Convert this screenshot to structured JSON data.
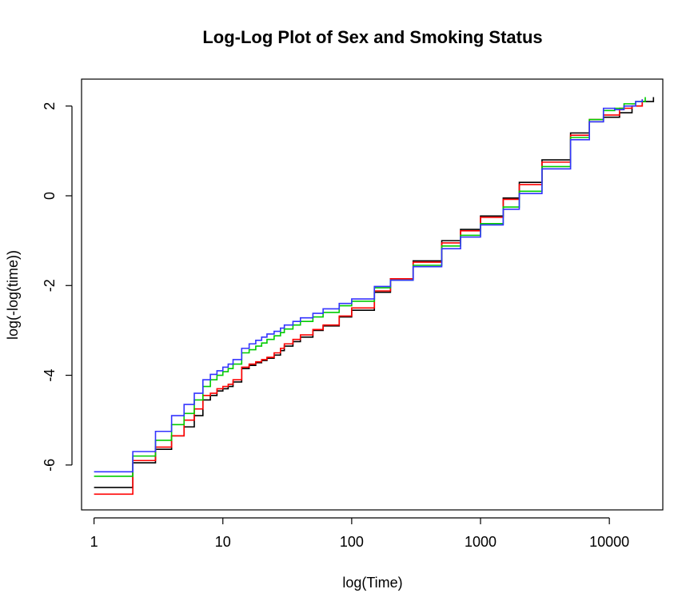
{
  "chart_data": {
    "type": "line",
    "title": "Log-Log Plot of Sex and Smoking Status",
    "xlabel": "log(Time)",
    "ylabel": "log(-log(time))",
    "x_scale": "log10",
    "xlim": [
      0.8,
      26000
    ],
    "ylim": [
      -7.0,
      2.6
    ],
    "x_ticks": [
      1,
      10,
      100,
      1000,
      10000
    ],
    "x_tick_labels": [
      "1",
      "10",
      "100",
      "1000",
      "10000"
    ],
    "y_ticks": [
      -6,
      -4,
      -2,
      0,
      2
    ],
    "y_tick_labels": [
      "-6",
      "-4",
      "-2",
      "0",
      "2"
    ],
    "grid": false,
    "legend": "none",
    "series": [
      {
        "color": "#000000",
        "step": true,
        "points": [
          [
            1,
            -6.5
          ],
          [
            2,
            -5.95
          ],
          [
            3,
            -5.65
          ],
          [
            4,
            -5.35
          ],
          [
            5,
            -5.15
          ],
          [
            6,
            -4.9
          ],
          [
            7,
            -4.55
          ],
          [
            8,
            -4.45
          ],
          [
            9,
            -4.35
          ],
          [
            10,
            -4.3
          ],
          [
            11,
            -4.25
          ],
          [
            12,
            -4.15
          ],
          [
            14,
            -3.85
          ],
          [
            16,
            -3.78
          ],
          [
            18,
            -3.72
          ],
          [
            20,
            -3.67
          ],
          [
            22,
            -3.62
          ],
          [
            25,
            -3.55
          ],
          [
            28,
            -3.45
          ],
          [
            30,
            -3.35
          ],
          [
            35,
            -3.25
          ],
          [
            40,
            -3.15
          ],
          [
            50,
            -3.0
          ],
          [
            60,
            -2.9
          ],
          [
            80,
            -2.7
          ],
          [
            100,
            -2.55
          ],
          [
            150,
            -2.15
          ],
          [
            200,
            -1.85
          ],
          [
            300,
            -1.45
          ],
          [
            500,
            -1.0
          ],
          [
            700,
            -0.75
          ],
          [
            1000,
            -0.45
          ],
          [
            1500,
            -0.05
          ],
          [
            2000,
            0.3
          ],
          [
            3000,
            0.8
          ],
          [
            5000,
            1.4
          ],
          [
            7000,
            1.65
          ],
          [
            9000,
            1.75
          ],
          [
            12000,
            1.85
          ],
          [
            15000,
            2.0
          ],
          [
            18000,
            2.1
          ],
          [
            22000,
            2.2
          ]
        ]
      },
      {
        "color": "#ff0000",
        "step": true,
        "points": [
          [
            1,
            -6.65
          ],
          [
            2,
            -5.9
          ],
          [
            3,
            -5.6
          ],
          [
            4,
            -5.35
          ],
          [
            5,
            -5.0
          ],
          [
            6,
            -4.75
          ],
          [
            7,
            -4.45
          ],
          [
            8,
            -4.4
          ],
          [
            9,
            -4.3
          ],
          [
            10,
            -4.25
          ],
          [
            11,
            -4.2
          ],
          [
            12,
            -4.1
          ],
          [
            14,
            -3.82
          ],
          [
            16,
            -3.75
          ],
          [
            18,
            -3.7
          ],
          [
            20,
            -3.65
          ],
          [
            22,
            -3.6
          ],
          [
            25,
            -3.5
          ],
          [
            28,
            -3.4
          ],
          [
            30,
            -3.3
          ],
          [
            35,
            -3.2
          ],
          [
            40,
            -3.1
          ],
          [
            50,
            -2.98
          ],
          [
            60,
            -2.88
          ],
          [
            80,
            -2.68
          ],
          [
            100,
            -2.5
          ],
          [
            150,
            -2.12
          ],
          [
            200,
            -1.85
          ],
          [
            300,
            -1.48
          ],
          [
            500,
            -1.05
          ],
          [
            700,
            -0.78
          ],
          [
            1000,
            -0.48
          ],
          [
            1500,
            -0.08
          ],
          [
            2000,
            0.25
          ],
          [
            3000,
            0.75
          ],
          [
            5000,
            1.35
          ],
          [
            7000,
            1.7
          ],
          [
            9000,
            1.8
          ],
          [
            12000,
            1.95
          ],
          [
            15000,
            2.0
          ],
          [
            18000,
            2.15
          ]
        ]
      },
      {
        "color": "#00cc00",
        "step": true,
        "points": [
          [
            1,
            -6.25
          ],
          [
            2,
            -5.8
          ],
          [
            3,
            -5.45
          ],
          [
            4,
            -5.1
          ],
          [
            5,
            -4.85
          ],
          [
            6,
            -4.55
          ],
          [
            7,
            -4.25
          ],
          [
            8,
            -4.1
          ],
          [
            9,
            -4.0
          ],
          [
            10,
            -3.92
          ],
          [
            11,
            -3.85
          ],
          [
            12,
            -3.75
          ],
          [
            14,
            -3.5
          ],
          [
            16,
            -3.43
          ],
          [
            18,
            -3.35
          ],
          [
            20,
            -3.28
          ],
          [
            22,
            -3.2
          ],
          [
            25,
            -3.12
          ],
          [
            28,
            -3.05
          ],
          [
            30,
            -2.97
          ],
          [
            35,
            -2.88
          ],
          [
            40,
            -2.8
          ],
          [
            50,
            -2.7
          ],
          [
            60,
            -2.6
          ],
          [
            80,
            -2.45
          ],
          [
            100,
            -2.35
          ],
          [
            150,
            -2.05
          ],
          [
            200,
            -1.88
          ],
          [
            300,
            -1.55
          ],
          [
            500,
            -1.12
          ],
          [
            700,
            -0.88
          ],
          [
            1000,
            -0.62
          ],
          [
            1500,
            -0.25
          ],
          [
            2000,
            0.1
          ],
          [
            3000,
            0.65
          ],
          [
            5000,
            1.3
          ],
          [
            7000,
            1.7
          ],
          [
            9000,
            1.9
          ],
          [
            11000,
            1.95
          ],
          [
            13000,
            2.05
          ],
          [
            16000,
            2.1
          ],
          [
            19000,
            2.2
          ]
        ]
      },
      {
        "color": "#3333ff",
        "step": true,
        "points": [
          [
            1,
            -6.15
          ],
          [
            2,
            -5.7
          ],
          [
            3,
            -5.25
          ],
          [
            4,
            -4.9
          ],
          [
            5,
            -4.65
          ],
          [
            6,
            -4.4
          ],
          [
            7,
            -4.1
          ],
          [
            8,
            -3.98
          ],
          [
            9,
            -3.9
          ],
          [
            10,
            -3.82
          ],
          [
            11,
            -3.75
          ],
          [
            12,
            -3.65
          ],
          [
            14,
            -3.4
          ],
          [
            16,
            -3.3
          ],
          [
            18,
            -3.22
          ],
          [
            20,
            -3.15
          ],
          [
            22,
            -3.08
          ],
          [
            25,
            -3.02
          ],
          [
            28,
            -2.95
          ],
          [
            30,
            -2.88
          ],
          [
            35,
            -2.8
          ],
          [
            40,
            -2.72
          ],
          [
            50,
            -2.62
          ],
          [
            60,
            -2.52
          ],
          [
            80,
            -2.4
          ],
          [
            100,
            -2.3
          ],
          [
            150,
            -2.02
          ],
          [
            200,
            -1.88
          ],
          [
            300,
            -1.58
          ],
          [
            500,
            -1.18
          ],
          [
            700,
            -0.92
          ],
          [
            1000,
            -0.65
          ],
          [
            1500,
            -0.3
          ],
          [
            2000,
            0.05
          ],
          [
            3000,
            0.6
          ],
          [
            5000,
            1.25
          ],
          [
            7000,
            1.65
          ],
          [
            9000,
            1.95
          ],
          [
            11000,
            1.92
          ],
          [
            13000,
            2.0
          ],
          [
            16000,
            2.1
          ],
          [
            18000,
            2.15
          ]
        ]
      }
    ]
  }
}
